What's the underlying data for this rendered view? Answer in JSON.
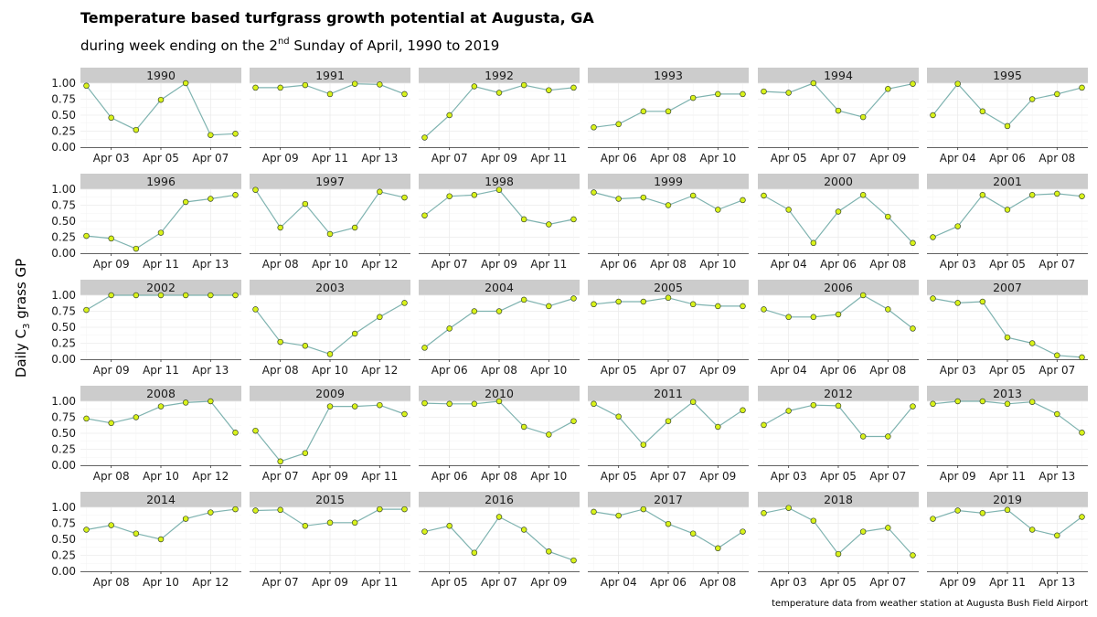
{
  "chart_data": {
    "type": "line",
    "title": "Temperature based turfgrass growth potential at Augusta, GA",
    "subtitle": {
      "before": "during week ending on the 2",
      "sup": "nd",
      "after": " Sunday of April, 1990 to 2019"
    },
    "ylabel": {
      "before": "Daily C",
      "sub": "3",
      "after": " grass GP"
    },
    "caption": "temperature data from weather station at Augusta Bush Field Airport",
    "ylim": [
      0,
      1
    ],
    "y_ticks": [
      "0.00",
      "0.25",
      "0.50",
      "0.75",
      "1.00"
    ],
    "grid": true,
    "colors": {
      "line": "#7fb3b0",
      "point_fill": "#d9f21a",
      "point_stroke": "#3b4a2a",
      "strip": "#cccccc"
    },
    "panels": [
      {
        "year": "1990",
        "start_day": 2,
        "x_ticks": [
          "Apr 03",
          "Apr 05",
          "Apr 07"
        ],
        "values": [
          0.96,
          0.46,
          0.27,
          0.74,
          1.0,
          0.19,
          0.21
        ]
      },
      {
        "year": "1991",
        "start_day": 8,
        "x_ticks": [
          "Apr 09",
          "Apr 11",
          "Apr 13"
        ],
        "values": [
          0.93,
          0.93,
          0.97,
          0.83,
          0.99,
          0.98,
          0.83
        ]
      },
      {
        "year": "1992",
        "start_day": 6,
        "x_ticks": [
          "Apr 07",
          "Apr 09",
          "Apr 11"
        ],
        "values": [
          0.15,
          0.5,
          0.95,
          0.85,
          0.97,
          0.89,
          0.93
        ]
      },
      {
        "year": "1993",
        "start_day": 5,
        "x_ticks": [
          "Apr 06",
          "Apr 08",
          "Apr 10"
        ],
        "values": [
          0.31,
          0.36,
          0.56,
          0.56,
          0.77,
          0.83,
          0.83
        ]
      },
      {
        "year": "1994",
        "start_day": 4,
        "x_ticks": [
          "Apr 05",
          "Apr 07",
          "Apr 09"
        ],
        "values": [
          0.87,
          0.85,
          1.0,
          0.57,
          0.47,
          0.91,
          0.99
        ]
      },
      {
        "year": "1995",
        "start_day": 3,
        "x_ticks": [
          "Apr 04",
          "Apr 06",
          "Apr 08"
        ],
        "values": [
          0.5,
          0.99,
          0.56,
          0.33,
          0.75,
          0.83,
          0.93
        ]
      },
      {
        "year": "1996",
        "start_day": 8,
        "x_ticks": [
          "Apr 09",
          "Apr 11",
          "Apr 13"
        ],
        "values": [
          0.27,
          0.23,
          0.07,
          0.32,
          0.8,
          0.85,
          0.91
        ]
      },
      {
        "year": "1997",
        "start_day": 7,
        "x_ticks": [
          "Apr 08",
          "Apr 10",
          "Apr 12"
        ],
        "values": [
          0.99,
          0.4,
          0.77,
          0.3,
          0.4,
          0.96,
          0.87
        ]
      },
      {
        "year": "1998",
        "start_day": 6,
        "x_ticks": [
          "Apr 07",
          "Apr 09",
          "Apr 11"
        ],
        "values": [
          0.59,
          0.89,
          0.91,
          0.99,
          0.53,
          0.45,
          0.53
        ]
      },
      {
        "year": "1999",
        "start_day": 5,
        "x_ticks": [
          "Apr 06",
          "Apr 08",
          "Apr 10"
        ],
        "values": [
          0.95,
          0.85,
          0.87,
          0.75,
          0.9,
          0.68,
          0.83
        ]
      },
      {
        "year": "2000",
        "start_day": 3,
        "x_ticks": [
          "Apr 04",
          "Apr 06",
          "Apr 08"
        ],
        "values": [
          0.9,
          0.68,
          0.16,
          0.65,
          0.91,
          0.57,
          0.16
        ]
      },
      {
        "year": "2001",
        "start_day": 2,
        "x_ticks": [
          "Apr 03",
          "Apr 05",
          "Apr 07"
        ],
        "values": [
          0.25,
          0.42,
          0.91,
          0.68,
          0.91,
          0.93,
          0.89
        ]
      },
      {
        "year": "2002",
        "start_day": 8,
        "x_ticks": [
          "Apr 09",
          "Apr 11",
          "Apr 13"
        ],
        "values": [
          0.77,
          1.0,
          1.0,
          1.0,
          1.0,
          1.0,
          1.0
        ]
      },
      {
        "year": "2003",
        "start_day": 7,
        "x_ticks": [
          "Apr 08",
          "Apr 10",
          "Apr 12"
        ],
        "values": [
          0.78,
          0.27,
          0.21,
          0.08,
          0.4,
          0.66,
          0.88
        ]
      },
      {
        "year": "2004",
        "start_day": 5,
        "x_ticks": [
          "Apr 06",
          "Apr 08",
          "Apr 10"
        ],
        "values": [
          0.18,
          0.48,
          0.75,
          0.75,
          0.93,
          0.83,
          0.95
        ]
      },
      {
        "year": "2005",
        "start_day": 4,
        "x_ticks": [
          "Apr 05",
          "Apr 07",
          "Apr 09"
        ],
        "values": [
          0.86,
          0.9,
          0.9,
          0.96,
          0.86,
          0.83,
          0.83
        ]
      },
      {
        "year": "2006",
        "start_day": 3,
        "x_ticks": [
          "Apr 04",
          "Apr 06",
          "Apr 08"
        ],
        "values": [
          0.78,
          0.66,
          0.66,
          0.7,
          1.0,
          0.78,
          0.48
        ]
      },
      {
        "year": "2007",
        "start_day": 2,
        "x_ticks": [
          "Apr 03",
          "Apr 05",
          "Apr 07"
        ],
        "values": [
          0.95,
          0.88,
          0.9,
          0.34,
          0.25,
          0.06,
          0.03
        ]
      },
      {
        "year": "2008",
        "start_day": 7,
        "x_ticks": [
          "Apr 08",
          "Apr 10",
          "Apr 12"
        ],
        "values": [
          0.73,
          0.66,
          0.75,
          0.92,
          0.98,
          1.0,
          0.51
        ]
      },
      {
        "year": "2009",
        "start_day": 6,
        "x_ticks": [
          "Apr 07",
          "Apr 09",
          "Apr 11"
        ],
        "values": [
          0.54,
          0.06,
          0.19,
          0.92,
          0.92,
          0.94,
          0.8
        ]
      },
      {
        "year": "2010",
        "start_day": 5,
        "x_ticks": [
          "Apr 06",
          "Apr 08",
          "Apr 10"
        ],
        "values": [
          0.97,
          0.96,
          0.96,
          1.0,
          0.6,
          0.48,
          0.69
        ]
      },
      {
        "year": "2011",
        "start_day": 4,
        "x_ticks": [
          "Apr 05",
          "Apr 07",
          "Apr 09"
        ],
        "values": [
          0.96,
          0.76,
          0.32,
          0.69,
          0.99,
          0.6,
          0.86
        ]
      },
      {
        "year": "2012",
        "start_day": 2,
        "x_ticks": [
          "Apr 03",
          "Apr 05",
          "Apr 07"
        ],
        "values": [
          0.63,
          0.85,
          0.94,
          0.93,
          0.45,
          0.45,
          0.92
        ]
      },
      {
        "year": "2013",
        "start_day": 8,
        "x_ticks": [
          "Apr 09",
          "Apr 11",
          "Apr 13"
        ],
        "values": [
          0.96,
          1.0,
          1.0,
          0.96,
          0.99,
          0.8,
          0.51
        ]
      },
      {
        "year": "2014",
        "start_day": 7,
        "x_ticks": [
          "Apr 08",
          "Apr 10",
          "Apr 12"
        ],
        "values": [
          0.65,
          0.72,
          0.59,
          0.5,
          0.82,
          0.92,
          0.97
        ]
      },
      {
        "year": "2015",
        "start_day": 6,
        "x_ticks": [
          "Apr 07",
          "Apr 09",
          "Apr 11"
        ],
        "values": [
          0.95,
          0.96,
          0.71,
          0.76,
          0.76,
          0.97,
          0.97
        ]
      },
      {
        "year": "2016",
        "start_day": 4,
        "x_ticks": [
          "Apr 05",
          "Apr 07",
          "Apr 09"
        ],
        "values": [
          0.62,
          0.71,
          0.29,
          0.85,
          0.65,
          0.31,
          0.17
        ]
      },
      {
        "year": "2017",
        "start_day": 3,
        "x_ticks": [
          "Apr 04",
          "Apr 06",
          "Apr 08"
        ],
        "values": [
          0.93,
          0.87,
          0.97,
          0.74,
          0.59,
          0.36,
          0.62
        ]
      },
      {
        "year": "2018",
        "start_day": 2,
        "x_ticks": [
          "Apr 03",
          "Apr 05",
          "Apr 07"
        ],
        "values": [
          0.91,
          0.99,
          0.79,
          0.27,
          0.62,
          0.68,
          0.25
        ]
      },
      {
        "year": "2019",
        "start_day": 8,
        "x_ticks": [
          "Apr 09",
          "Apr 11",
          "Apr 13"
        ],
        "values": [
          0.82,
          0.95,
          0.91,
          0.96,
          0.65,
          0.56,
          0.85
        ]
      }
    ]
  }
}
